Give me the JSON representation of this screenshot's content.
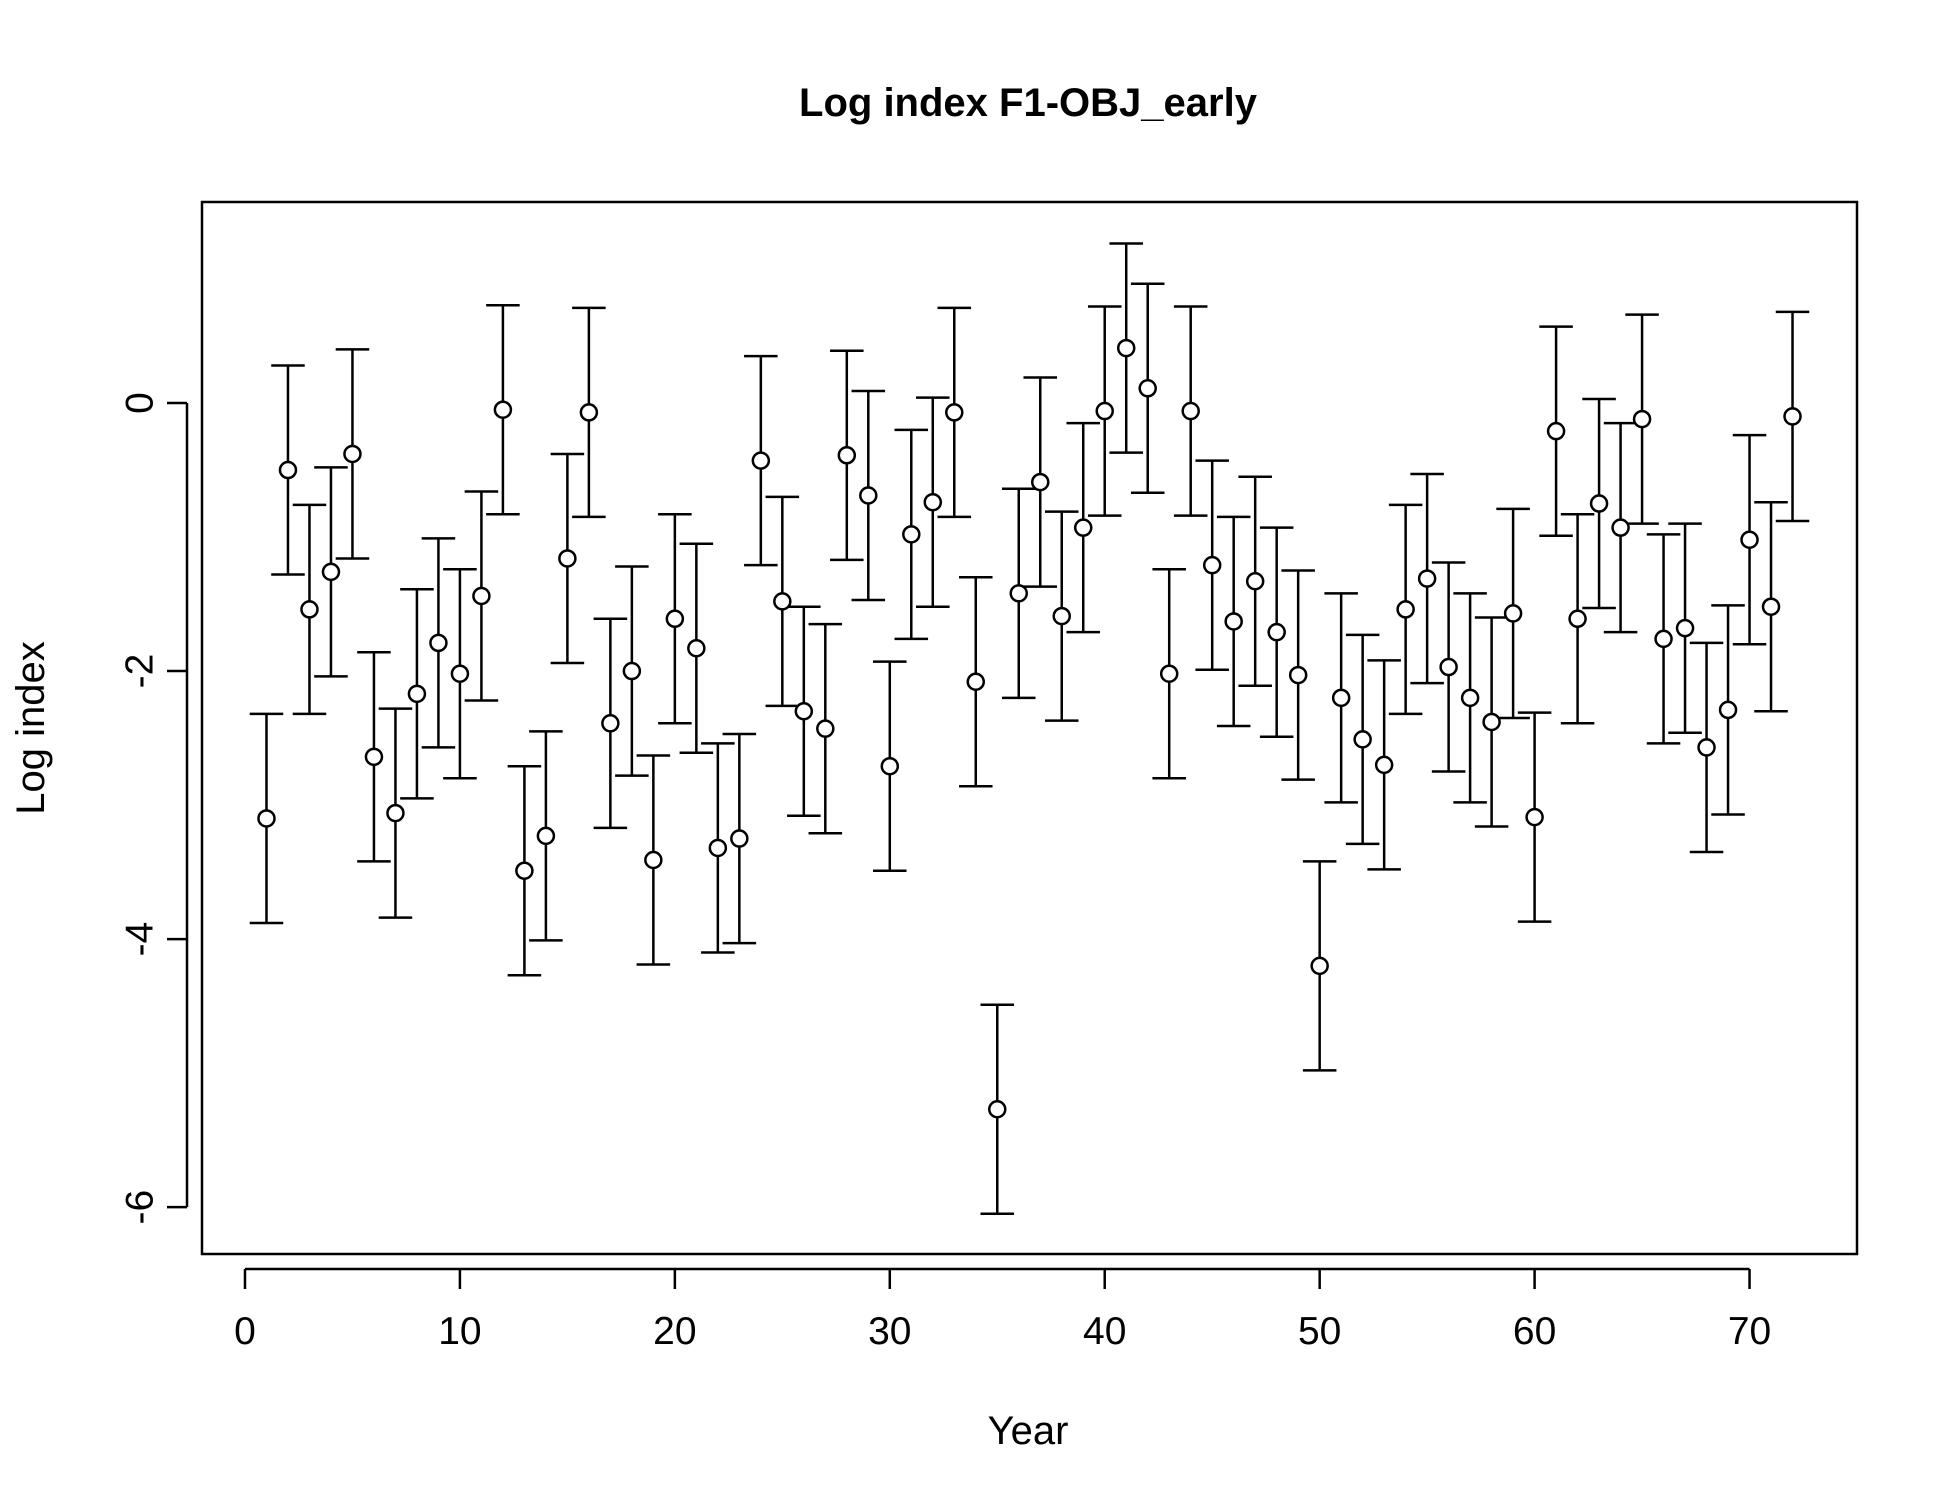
{
  "chart_data": {
    "type": "scatter",
    "title": "Log index F1-OBJ_early",
    "xlabel": "Year",
    "ylabel": "Log index",
    "xlim": [
      -2,
      75
    ],
    "ylim": [
      -6.35,
      1.5
    ],
    "grid": false,
    "legend": "none",
    "marker": "open-circle",
    "error_bar_half_width": 0.78,
    "colors": {
      "line": "#000000",
      "marker_fill": "#ffffff",
      "background": "#ffffff"
    },
    "x_ticks": [
      0,
      10,
      20,
      30,
      40,
      50,
      60,
      70
    ],
    "y_ticks": [
      0,
      -2,
      -4,
      -6
    ],
    "x_tick_labels": [
      "0",
      "10",
      "20",
      "30",
      "40",
      "50",
      "60",
      "70"
    ],
    "y_tick_labels": [
      "0",
      "-2",
      "-4",
      "-6"
    ],
    "x": [
      1,
      2,
      3,
      4,
      5,
      6,
      7,
      8,
      9,
      10,
      11,
      12,
      13,
      14,
      15,
      16,
      17,
      18,
      19,
      20,
      21,
      22,
      23,
      24,
      25,
      26,
      27,
      28,
      29,
      30,
      31,
      32,
      33,
      34,
      35,
      36,
      37,
      38,
      39,
      40,
      41,
      42,
      43,
      44,
      45,
      46,
      47,
      48,
      49,
      50,
      51,
      52,
      53,
      54,
      55,
      56,
      57,
      58,
      59,
      60,
      61,
      62,
      63,
      64,
      65,
      66,
      67,
      68,
      69,
      70,
      71,
      72
    ],
    "y": [
      -3.1,
      -0.5,
      -1.54,
      -1.26,
      -0.38,
      -2.64,
      -3.06,
      -2.17,
      -1.79,
      -2.02,
      -1.44,
      -0.05,
      -3.49,
      -3.23,
      -1.16,
      -0.07,
      -2.39,
      -2.0,
      -3.41,
      -1.61,
      -1.83,
      -3.32,
      -3.25,
      -0.43,
      -1.48,
      -2.3,
      -2.43,
      -0.39,
      -0.69,
      -2.71,
      -0.98,
      -0.74,
      -0.07,
      -2.08,
      -5.27,
      -1.42,
      -0.59,
      -1.59,
      -0.93,
      -0.06,
      0.41,
      0.11,
      -2.02,
      -0.06,
      -1.21,
      -1.63,
      -1.33,
      -1.71,
      -2.03,
      -4.2,
      -2.2,
      -2.51,
      -2.7,
      -1.54,
      -1.31,
      -1.97,
      -2.2,
      -2.38,
      -1.57,
      -3.09,
      -0.21,
      -1.61,
      -0.75,
      -0.93,
      -0.12,
      -1.76,
      -1.68,
      -2.57,
      -2.29,
      -1.02,
      -1.52,
      -0.1
    ],
    "error_low": [
      -3.88,
      -1.28,
      -2.32,
      -2.04,
      -1.16,
      -3.42,
      -3.84,
      -2.95,
      -2.57,
      -2.8,
      -2.22,
      -0.83,
      -4.27,
      -4.01,
      -1.94,
      -0.85,
      -3.17,
      -2.78,
      -4.19,
      -2.39,
      -2.61,
      -4.1,
      -4.03,
      -1.21,
      -2.26,
      -3.08,
      -3.21,
      -1.17,
      -1.47,
      -3.49,
      -1.76,
      -1.52,
      -0.85,
      -2.86,
      -6.05,
      -2.2,
      -1.37,
      -2.37,
      -1.71,
      -0.84,
      -0.37,
      -0.67,
      -2.8,
      -0.84,
      -1.99,
      -2.41,
      -2.11,
      -2.49,
      -2.81,
      -4.98,
      -2.98,
      -3.29,
      -3.48,
      -2.32,
      -2.09,
      -2.75,
      -2.98,
      -3.16,
      -2.35,
      -3.87,
      -0.99,
      -2.39,
      -1.53,
      -1.71,
      -0.9,
      -2.54,
      -2.46,
      -3.35,
      -3.07,
      -1.8,
      -2.3,
      -0.88
    ],
    "error_high": [
      -2.32,
      0.28,
      -0.76,
      -0.48,
      0.4,
      -1.86,
      -2.28,
      -1.39,
      -1.01,
      -1.24,
      -0.66,
      0.73,
      -2.71,
      -2.45,
      -0.38,
      0.71,
      -1.61,
      -1.22,
      -2.63,
      -0.83,
      -1.05,
      -2.54,
      -2.47,
      0.35,
      -0.7,
      -1.52,
      -1.65,
      0.39,
      0.09,
      -1.93,
      -0.2,
      0.04,
      0.71,
      -1.3,
      -4.49,
      -0.64,
      0.19,
      -0.81,
      -0.15,
      0.72,
      1.19,
      0.89,
      -1.24,
      0.72,
      -0.43,
      -0.85,
      -0.55,
      -0.93,
      -1.25,
      -3.42,
      -1.42,
      -1.73,
      -1.92,
      -0.76,
      -0.53,
      -1.19,
      -1.42,
      -1.6,
      -0.79,
      -2.31,
      0.57,
      -0.83,
      0.03,
      -0.15,
      0.66,
      -0.98,
      -0.9,
      -1.79,
      -1.51,
      -0.24,
      -0.74,
      0.68
    ]
  }
}
